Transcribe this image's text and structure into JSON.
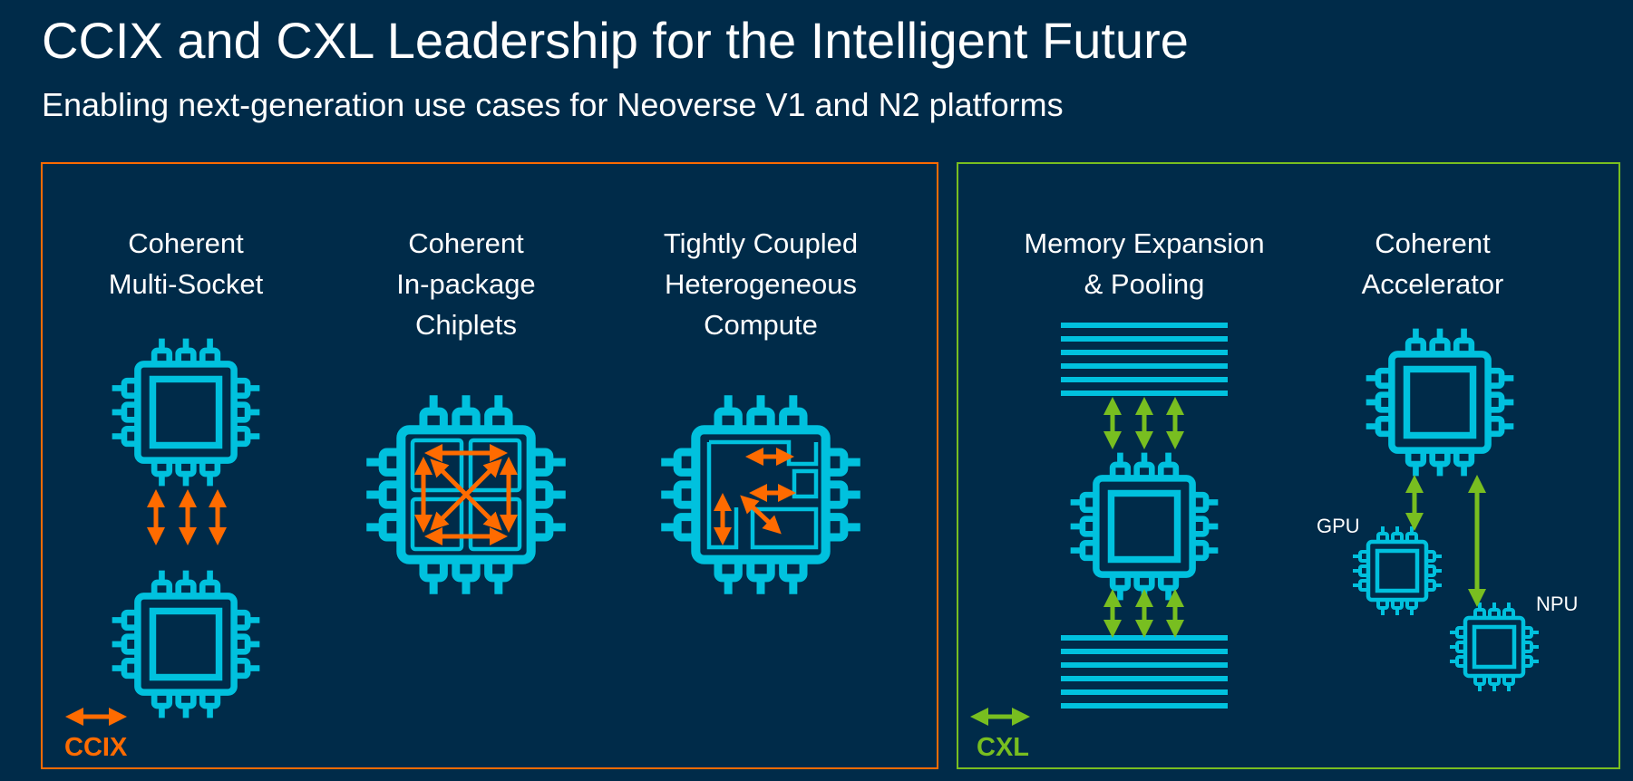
{
  "title": "CCIX and CXL Leadership for the Intelligent Future",
  "subtitle": "Enabling next-generation use cases for Neoverse V1 and N2 platforms",
  "colors": {
    "background": "#002b49",
    "chip": "#00c1de",
    "ccix": "#ff6b00",
    "cxl": "#78be20",
    "text": "#ffffff"
  },
  "ccix": {
    "legend": "CCIX",
    "use_cases": [
      {
        "lines": [
          "Coherent",
          "Multi-Socket"
        ]
      },
      {
        "lines": [
          "Coherent",
          "In-package",
          "Chiplets"
        ]
      },
      {
        "lines": [
          "Tightly Coupled",
          "Heterogeneous",
          "Compute"
        ]
      }
    ]
  },
  "cxl": {
    "legend": "CXL",
    "use_cases": [
      {
        "lines": [
          "Memory Expansion",
          "& Pooling"
        ]
      },
      {
        "lines": [
          "Coherent",
          "Accelerator"
        ]
      }
    ],
    "gpu_label": "GPU",
    "npu_label": "NPU"
  }
}
